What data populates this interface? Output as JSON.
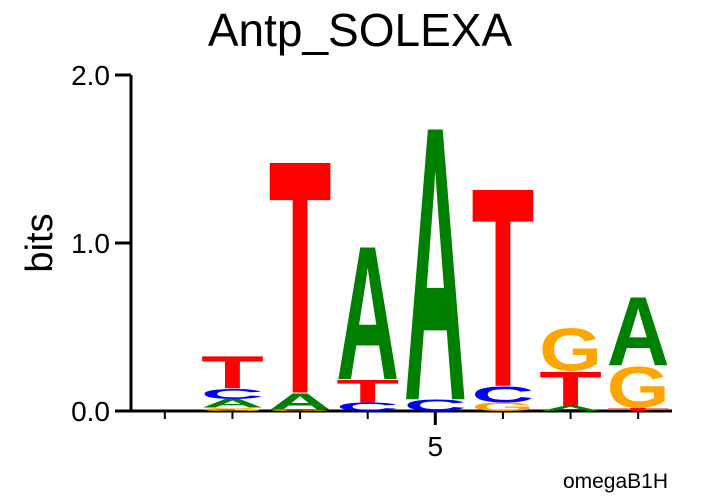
{
  "chart_data": {
    "type": "logo",
    "title": "Antp_SOLEXA",
    "y_label": "bits",
    "annotation": "omegaB1H",
    "ylim": [
      0,
      2
    ],
    "yticks": [
      {
        "value": 0,
        "label": "0.0"
      },
      {
        "value": 1,
        "label": "1.0"
      },
      {
        "value": 2,
        "label": "2.0"
      }
    ],
    "xlim": [
      0.5,
      8.5
    ],
    "xticks": [
      5
    ],
    "colors": {
      "A": "#008000",
      "C": "#0000ff",
      "G": "#ffa500",
      "T": "#ff0000"
    },
    "positions": [
      {
        "x": 1,
        "letters": [],
        "heights": []
      },
      {
        "x": 2,
        "letters": [
          "G",
          "A",
          "C",
          "T"
        ],
        "heights": [
          0.02,
          0.05,
          0.065,
          0.2
        ]
      },
      {
        "x": 3,
        "letters": [
          "G",
          "A",
          "T"
        ],
        "heights": [
          0.01,
          0.1,
          1.43
        ]
      },
      {
        "x": 4,
        "letters": [
          "C",
          "T",
          "A"
        ],
        "heights": [
          0.05,
          0.14,
          0.82
        ]
      },
      {
        "x": 5,
        "letters": [
          "C",
          "A"
        ],
        "heights": [
          0.07,
          1.68
        ]
      },
      {
        "x": 6,
        "letters": [
          "G",
          "C",
          "T"
        ],
        "heights": [
          0.05,
          0.1,
          1.22
        ]
      },
      {
        "x": 7,
        "letters": [
          "A",
          "T",
          "G"
        ],
        "heights": [
          0.03,
          0.21,
          0.26
        ]
      },
      {
        "x": 8,
        "letters": [
          "T",
          "G",
          "A"
        ],
        "heights": [
          0.02,
          0.25,
          0.42
        ]
      }
    ]
  }
}
